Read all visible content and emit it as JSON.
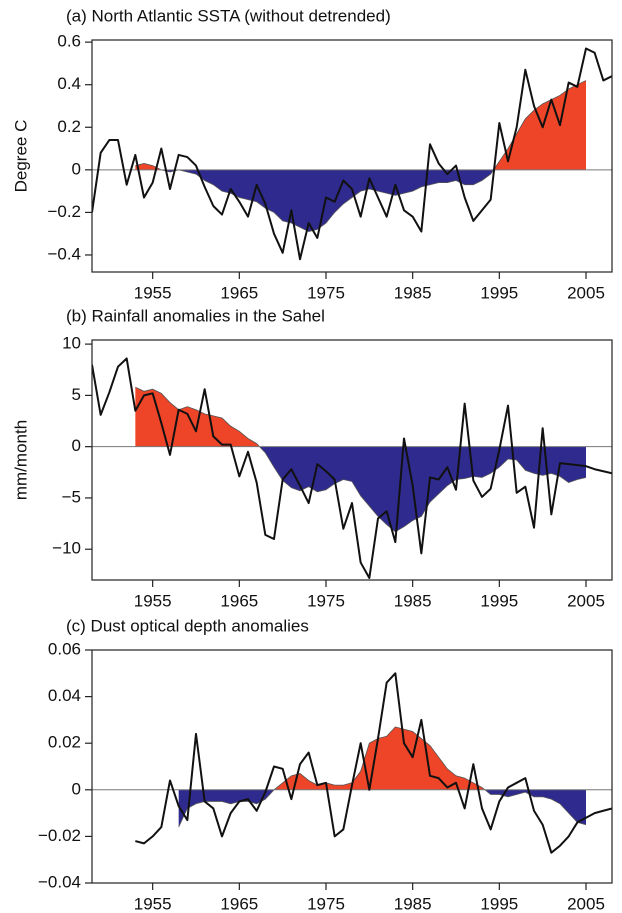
{
  "chart_data": [
    {
      "type": "line",
      "title": "(a) North Atlantic SSTA (without detrended)",
      "ylabel": "Degree C",
      "xlim": [
        1948,
        2008
      ],
      "xticks": [
        1955,
        1965,
        1975,
        1985,
        1995,
        2005
      ],
      "ylim": [
        -0.48,
        0.61
      ],
      "yticks": [
        {
          "value": -0.4,
          "label": "−0.4"
        },
        {
          "value": -0.2,
          "label": "−0.2"
        },
        0,
        0.2,
        0.4,
        0.6
      ],
      "annual": {
        "color": "#111111",
        "x": [
          1948,
          1949,
          1950,
          1951,
          1952,
          1953,
          1954,
          1955,
          1956,
          1957,
          1958,
          1959,
          1960,
          1961,
          1962,
          1963,
          1964,
          1965,
          1966,
          1967,
          1968,
          1969,
          1970,
          1971,
          1972,
          1973,
          1974,
          1975,
          1976,
          1977,
          1978,
          1979,
          1980,
          1981,
          1982,
          1983,
          1984,
          1985,
          1986,
          1987,
          1988,
          1989,
          1990,
          1991,
          1992,
          1993,
          1994,
          1995,
          1996,
          1997,
          1998,
          1999,
          2000,
          2001,
          2002,
          2003,
          2004,
          2005,
          2006,
          2007,
          2008
        ],
        "values": [
          -0.2,
          0.08,
          0.14,
          0.14,
          -0.07,
          0.07,
          -0.13,
          -0.06,
          0.1,
          -0.09,
          0.07,
          0.06,
          0.02,
          -0.08,
          -0.17,
          -0.21,
          -0.09,
          -0.15,
          -0.22,
          -0.07,
          -0.16,
          -0.3,
          -0.39,
          -0.19,
          -0.42,
          -0.25,
          -0.32,
          -0.13,
          -0.15,
          -0.05,
          -0.09,
          -0.22,
          -0.04,
          -0.13,
          -0.22,
          -0.07,
          -0.19,
          -0.22,
          -0.29,
          0.12,
          0.03,
          -0.02,
          0.02,
          -0.13,
          -0.24,
          -0.19,
          -0.14,
          0.22,
          0.04,
          0.2,
          0.47,
          0.3,
          0.2,
          0.33,
          0.21,
          0.41,
          0.39,
          0.57,
          0.55,
          0.42,
          0.44
        ]
      },
      "smoothed": {
        "positive_color": "#ee4528",
        "negative_color": "#2f2a8e",
        "x": [
          1953,
          1954,
          1955,
          1956,
          1957,
          1958,
          1959,
          1960,
          1961,
          1962,
          1963,
          1964,
          1965,
          1966,
          1967,
          1968,
          1969,
          1970,
          1971,
          1972,
          1973,
          1974,
          1975,
          1976,
          1977,
          1978,
          1979,
          1980,
          1981,
          1982,
          1983,
          1984,
          1985,
          1986,
          1987,
          1988,
          1989,
          1990,
          1991,
          1992,
          1993,
          1994,
          1995,
          1996,
          1997,
          1998,
          1999,
          2000,
          2001,
          2002,
          2003,
          2004,
          2005
        ],
        "values": [
          0.02,
          0.03,
          0.02,
          0.0,
          -0.01,
          0.0,
          -0.01,
          -0.02,
          -0.05,
          -0.07,
          -0.1,
          -0.11,
          -0.13,
          -0.14,
          -0.15,
          -0.18,
          -0.2,
          -0.24,
          -0.25,
          -0.27,
          -0.29,
          -0.28,
          -0.25,
          -0.2,
          -0.16,
          -0.13,
          -0.1,
          -0.09,
          -0.1,
          -0.11,
          -0.12,
          -0.11,
          -0.1,
          -0.08,
          -0.07,
          -0.06,
          -0.06,
          -0.05,
          -0.07,
          -0.07,
          -0.05,
          -0.02,
          0.04,
          0.1,
          0.17,
          0.24,
          0.28,
          0.31,
          0.33,
          0.35,
          0.38,
          0.4,
          0.42
        ]
      }
    },
    {
      "type": "line",
      "title": "(b) Rainfall anomalies in the Sahel",
      "ylabel": "mm/month",
      "xlim": [
        1948,
        2008
      ],
      "xticks": [
        1955,
        1965,
        1975,
        1985,
        1995,
        2005
      ],
      "ylim": [
        -13,
        10.4
      ],
      "yticks": [
        {
          "value": -10,
          "label": "−10"
        },
        {
          "value": -5,
          "label": "−5"
        },
        0,
        5,
        10
      ],
      "annual": {
        "color": "#111111",
        "x": [
          1948,
          1949,
          1950,
          1951,
          1952,
          1953,
          1954,
          1955,
          1956,
          1957,
          1958,
          1959,
          1960,
          1961,
          1962,
          1963,
          1964,
          1965,
          1966,
          1967,
          1968,
          1969,
          1970,
          1971,
          1972,
          1973,
          1974,
          1975,
          1976,
          1977,
          1978,
          1979,
          1980,
          1981,
          1982,
          1983,
          1984,
          1985,
          1986,
          1987,
          1988,
          1989,
          1990,
          1991,
          1992,
          1993,
          1994,
          1995,
          1996,
          1997,
          1998,
          1999,
          2000,
          2001,
          2002,
          2003,
          2004,
          2005,
          2006,
          2007,
          2008
        ],
        "values": [
          8,
          3.1,
          5.3,
          7.8,
          8.6,
          3.5,
          5.0,
          5.2,
          2.3,
          -0.8,
          3.6,
          3.2,
          1.5,
          5.6,
          1.0,
          0.2,
          0.2,
          -2.9,
          -0.5,
          -3.5,
          -8.6,
          -9.0,
          -3.2,
          -2.2,
          -3.8,
          -5.5,
          -1.7,
          -2.4,
          -3.2,
          -8.0,
          -5.5,
          -11.3,
          -12.8,
          -7.0,
          -6.3,
          -9.3,
          0.8,
          -3.8,
          -10.4,
          -3.0,
          -3.2,
          -2.0,
          -4.2,
          4.2,
          -3.3,
          -4.9,
          -4.1,
          -0.3,
          4.0,
          -4.5,
          -3.9,
          -7.9,
          1.8,
          -6.6,
          -1.6,
          -1.7,
          -1.8,
          -1.9,
          -2.2,
          -2.4,
          -2.6
        ]
      },
      "smoothed": {
        "positive_color": "#ee4528",
        "negative_color": "#2f2a8e",
        "x": [
          1953,
          1954,
          1955,
          1956,
          1957,
          1958,
          1959,
          1960,
          1961,
          1962,
          1963,
          1964,
          1965,
          1966,
          1967,
          1968,
          1969,
          1970,
          1971,
          1972,
          1973,
          1974,
          1975,
          1976,
          1977,
          1978,
          1979,
          1980,
          1981,
          1982,
          1983,
          1984,
          1985,
          1986,
          1987,
          1988,
          1989,
          1990,
          1991,
          1992,
          1993,
          1994,
          1995,
          1996,
          1997,
          1998,
          1999,
          2000,
          2001,
          2002,
          2003,
          2004,
          2005
        ],
        "values": [
          5.8,
          5.4,
          5.6,
          5.2,
          4.3,
          3.6,
          3.9,
          3.6,
          3.2,
          3.0,
          2.8,
          2.0,
          1.5,
          0.8,
          0.3,
          -0.6,
          -2.0,
          -3.3,
          -4.0,
          -4.3,
          -3.9,
          -4.4,
          -4.2,
          -3.6,
          -3.2,
          -3.4,
          -4.8,
          -5.8,
          -6.8,
          -7.6,
          -8.3,
          -7.8,
          -7.2,
          -6.8,
          -5.4,
          -4.6,
          -3.8,
          -3.2,
          -3.1,
          -2.9,
          -3.0,
          -2.6,
          -2.0,
          -1.2,
          -1.3,
          -2.3,
          -2.6,
          -2.8,
          -2.6,
          -2.9,
          -3.5,
          -3.2,
          -3.0
        ]
      }
    },
    {
      "type": "line",
      "title": "(c) Dust optical depth anomalies",
      "xlim": [
        1948,
        2008
      ],
      "xticks": [
        1955,
        1965,
        1975,
        1985,
        1995,
        2005
      ],
      "ylim": [
        -0.04,
        0.06
      ],
      "yticks": [
        {
          "value": -0.04,
          "label": "−0.04"
        },
        {
          "value": -0.02,
          "label": "−0.02"
        },
        0,
        0.02,
        0.04,
        0.06
      ],
      "annual": {
        "color": "#111111",
        "x": [
          1953,
          1954,
          1955,
          1956,
          1957,
          1958,
          1959,
          1960,
          1961,
          1962,
          1963,
          1964,
          1965,
          1966,
          1967,
          1968,
          1969,
          1970,
          1971,
          1972,
          1973,
          1974,
          1975,
          1976,
          1977,
          1978,
          1979,
          1980,
          1981,
          1982,
          1983,
          1984,
          1985,
          1986,
          1987,
          1988,
          1989,
          1990,
          1991,
          1992,
          1993,
          1994,
          1995,
          1996,
          1997,
          1998,
          1999,
          2000,
          2001,
          2002,
          2003,
          2004,
          2005,
          2006,
          2007,
          2008
        ],
        "values": [
          -0.022,
          -0.023,
          -0.02,
          -0.016,
          0.004,
          -0.007,
          -0.013,
          0.024,
          -0.005,
          -0.008,
          -0.02,
          -0.01,
          -0.005,
          -0.004,
          -0.009,
          -0.001,
          0.01,
          0.009,
          -0.004,
          0.011,
          0.016,
          0.002,
          0.003,
          -0.02,
          -0.017,
          0.002,
          0.02,
          0.0,
          0.022,
          0.046,
          0.05,
          0.02,
          0.014,
          0.03,
          0.006,
          0.005,
          0.001,
          0.003,
          -0.008,
          0.011,
          -0.008,
          -0.017,
          -0.005,
          0.001,
          0.003,
          0.005,
          -0.009,
          -0.015,
          -0.027,
          -0.024,
          -0.02,
          -0.014,
          -0.012,
          -0.01,
          -0.009,
          -0.008
        ]
      },
      "smoothed": {
        "positive_color": "#ee4528",
        "negative_color": "#2f2a8e",
        "x": [
          1958,
          1959,
          1960,
          1961,
          1962,
          1963,
          1964,
          1965,
          1966,
          1967,
          1968,
          1969,
          1970,
          1971,
          1972,
          1973,
          1974,
          1975,
          1976,
          1977,
          1978,
          1979,
          1980,
          1981,
          1982,
          1983,
          1984,
          1985,
          1986,
          1987,
          1988,
          1989,
          1990,
          1991,
          1992,
          1993,
          1994,
          1995,
          1996,
          1997,
          1998,
          1999,
          2000,
          2001,
          2002,
          2003,
          2004,
          2005
        ],
        "values": [
          -0.016,
          -0.008,
          -0.006,
          -0.005,
          -0.005,
          -0.005,
          -0.006,
          -0.005,
          -0.005,
          -0.006,
          -0.004,
          0.0,
          0.003,
          0.006,
          0.007,
          0.004,
          0.002,
          0.003,
          0.002,
          0.002,
          0.003,
          0.008,
          0.02,
          0.022,
          0.023,
          0.027,
          0.026,
          0.025,
          0.022,
          0.019,
          0.014,
          0.009,
          0.006,
          0.005,
          0.003,
          0.001,
          -0.002,
          -0.002,
          -0.003,
          -0.002,
          -0.001,
          -0.003,
          -0.003,
          -0.004,
          -0.006,
          -0.01,
          -0.014,
          -0.015
        ]
      }
    }
  ]
}
